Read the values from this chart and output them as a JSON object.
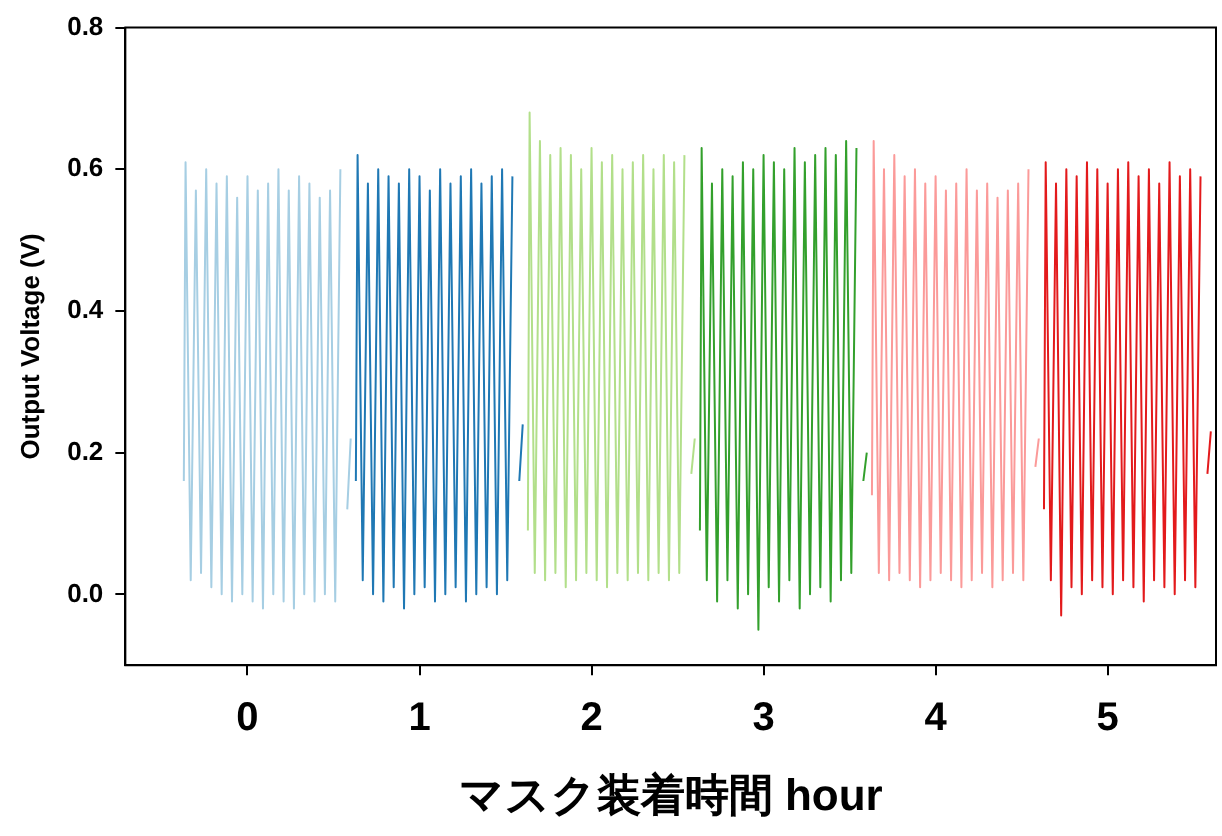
{
  "chart_data": {
    "type": "line",
    "xlabel": "マスク装着時間 hour",
    "ylabel": "Output Voltage (V)",
    "xlim": [
      -0.71,
      5.63
    ],
    "xticks": [
      0,
      1,
      2,
      3,
      4,
      5
    ],
    "ylim": [
      -0.1,
      0.8
    ],
    "yticks": [
      {
        "value": 0,
        "label": "0.0"
      },
      {
        "value": 0.2,
        "label": "0.2"
      },
      {
        "value": 0.4,
        "label": "0.4"
      },
      {
        "value": 0.6,
        "label": "0.6"
      },
      {
        "value": 0.8,
        "label": "0.8"
      }
    ],
    "grid": false,
    "legend": false,
    "marker": "none",
    "line_style": "solid",
    "series": [
      {
        "color": "#a6cee3",
        "x": [
          -0.37,
          -0.36,
          -0.33,
          -0.3,
          -0.27,
          -0.24,
          -0.21,
          -0.18,
          -0.15,
          -0.12,
          -0.09,
          -0.06,
          -0.03,
          0,
          0.03,
          0.06,
          0.09,
          0.12,
          0.15,
          0.18,
          0.21,
          0.24,
          0.27,
          0.3,
          0.33,
          0.36,
          0.39,
          0.42,
          0.45,
          0.48,
          0.51,
          0.54,
          0.555,
          0.58,
          0.6
        ],
        "values": [
          0.16,
          0.61,
          0.02,
          0.57,
          0.03,
          0.6,
          0.01,
          0.58,
          0,
          0.59,
          -0.01,
          0.56,
          0,
          0.59,
          -0.01,
          0.57,
          -0.02,
          0.58,
          0,
          0.6,
          -0.01,
          0.57,
          -0.02,
          0.59,
          0,
          0.58,
          -0.01,
          0.56,
          0,
          0.57,
          -0.01,
          0.6,
          null,
          0.12,
          0.22
        ]
      },
      {
        "color": "#1f78b4",
        "x": [
          0.63,
          0.64,
          0.67,
          0.7,
          0.73,
          0.76,
          0.79,
          0.82,
          0.85,
          0.88,
          0.91,
          0.94,
          0.97,
          1,
          1.03,
          1.06,
          1.09,
          1.12,
          1.15,
          1.18,
          1.21,
          1.24,
          1.27,
          1.3,
          1.33,
          1.36,
          1.39,
          1.42,
          1.45,
          1.48,
          1.51,
          1.54,
          1.555,
          1.58,
          1.6
        ],
        "values": [
          0.16,
          0.62,
          0.02,
          0.58,
          0,
          0.6,
          -0.01,
          0.59,
          0.01,
          0.58,
          -0.02,
          0.6,
          0,
          0.59,
          0.01,
          0.57,
          -0.01,
          0.6,
          0,
          0.58,
          0.01,
          0.59,
          -0.01,
          0.6,
          0,
          0.58,
          0.01,
          0.59,
          0,
          0.6,
          0.02,
          0.59,
          null,
          0.16,
          0.24
        ]
      },
      {
        "color": "#b2df8a",
        "x": [
          1.63,
          1.64,
          1.67,
          1.7,
          1.73,
          1.76,
          1.79,
          1.82,
          1.85,
          1.88,
          1.91,
          1.94,
          1.97,
          2,
          2.03,
          2.06,
          2.09,
          2.12,
          2.15,
          2.18,
          2.21,
          2.24,
          2.27,
          2.3,
          2.33,
          2.36,
          2.39,
          2.42,
          2.45,
          2.48,
          2.51,
          2.54,
          2.555,
          2.58,
          2.6
        ],
        "values": [
          0.09,
          0.68,
          0.03,
          0.64,
          0.02,
          0.62,
          0.03,
          0.63,
          0.01,
          0.62,
          0.02,
          0.6,
          0.03,
          0.63,
          0.02,
          0.61,
          0.01,
          0.62,
          0.03,
          0.6,
          0.02,
          0.61,
          0.03,
          0.62,
          0.02,
          0.6,
          0.03,
          0.62,
          0.02,
          0.61,
          0.03,
          0.62,
          null,
          0.17,
          0.22
        ]
      },
      {
        "color": "#33a02c",
        "x": [
          2.63,
          2.64,
          2.67,
          2.7,
          2.73,
          2.76,
          2.79,
          2.82,
          2.85,
          2.88,
          2.91,
          2.94,
          2.97,
          3,
          3.03,
          3.06,
          3.09,
          3.12,
          3.15,
          3.18,
          3.21,
          3.24,
          3.27,
          3.3,
          3.33,
          3.36,
          3.39,
          3.42,
          3.45,
          3.48,
          3.51,
          3.54,
          3.555,
          3.58,
          3.6
        ],
        "values": [
          0.09,
          0.63,
          0.02,
          0.58,
          -0.01,
          0.6,
          0.02,
          0.59,
          -0.02,
          0.61,
          0,
          0.6,
          -0.05,
          0.62,
          0.01,
          0.61,
          -0.01,
          0.6,
          0.02,
          0.63,
          -0.02,
          0.61,
          0,
          0.62,
          0.01,
          0.63,
          -0.01,
          0.62,
          0.02,
          0.64,
          0.03,
          0.63,
          null,
          0.16,
          0.2
        ]
      },
      {
        "color": "#fb9a99",
        "x": [
          3.63,
          3.64,
          3.67,
          3.7,
          3.73,
          3.76,
          3.79,
          3.82,
          3.85,
          3.88,
          3.91,
          3.94,
          3.97,
          4,
          4.03,
          4.06,
          4.09,
          4.12,
          4.15,
          4.18,
          4.21,
          4.24,
          4.27,
          4.3,
          4.33,
          4.36,
          4.39,
          4.42,
          4.45,
          4.48,
          4.51,
          4.54,
          4.555,
          4.58,
          4.6
        ],
        "values": [
          0.14,
          0.64,
          0.03,
          0.6,
          0.02,
          0.62,
          0.03,
          0.59,
          0.02,
          0.6,
          0.01,
          0.58,
          0.02,
          0.59,
          0.03,
          0.57,
          0.02,
          0.58,
          0.01,
          0.6,
          0.02,
          0.57,
          0.03,
          0.58,
          0.01,
          0.56,
          0.02,
          0.57,
          0.03,
          0.58,
          0.02,
          0.6,
          null,
          0.18,
          0.22
        ]
      },
      {
        "color": "#e31a1c",
        "x": [
          4.63,
          4.64,
          4.67,
          4.7,
          4.73,
          4.76,
          4.79,
          4.82,
          4.85,
          4.88,
          4.91,
          4.94,
          4.97,
          5,
          5.03,
          5.06,
          5.09,
          5.12,
          5.15,
          5.18,
          5.21,
          5.24,
          5.27,
          5.3,
          5.33,
          5.36,
          5.39,
          5.42,
          5.45,
          5.48,
          5.51,
          5.54,
          5.555,
          5.58,
          5.6
        ],
        "values": [
          0.12,
          0.61,
          0.02,
          0.58,
          -0.03,
          0.6,
          0.01,
          0.59,
          0,
          0.61,
          0.02,
          0.6,
          0.01,
          0.58,
          0,
          0.6,
          0.02,
          0.61,
          0.01,
          0.59,
          -0.01,
          0.6,
          0.02,
          0.58,
          0.01,
          0.61,
          0,
          0.59,
          0.02,
          0.6,
          0.01,
          0.59,
          null,
          0.17,
          0.23
        ]
      }
    ]
  }
}
